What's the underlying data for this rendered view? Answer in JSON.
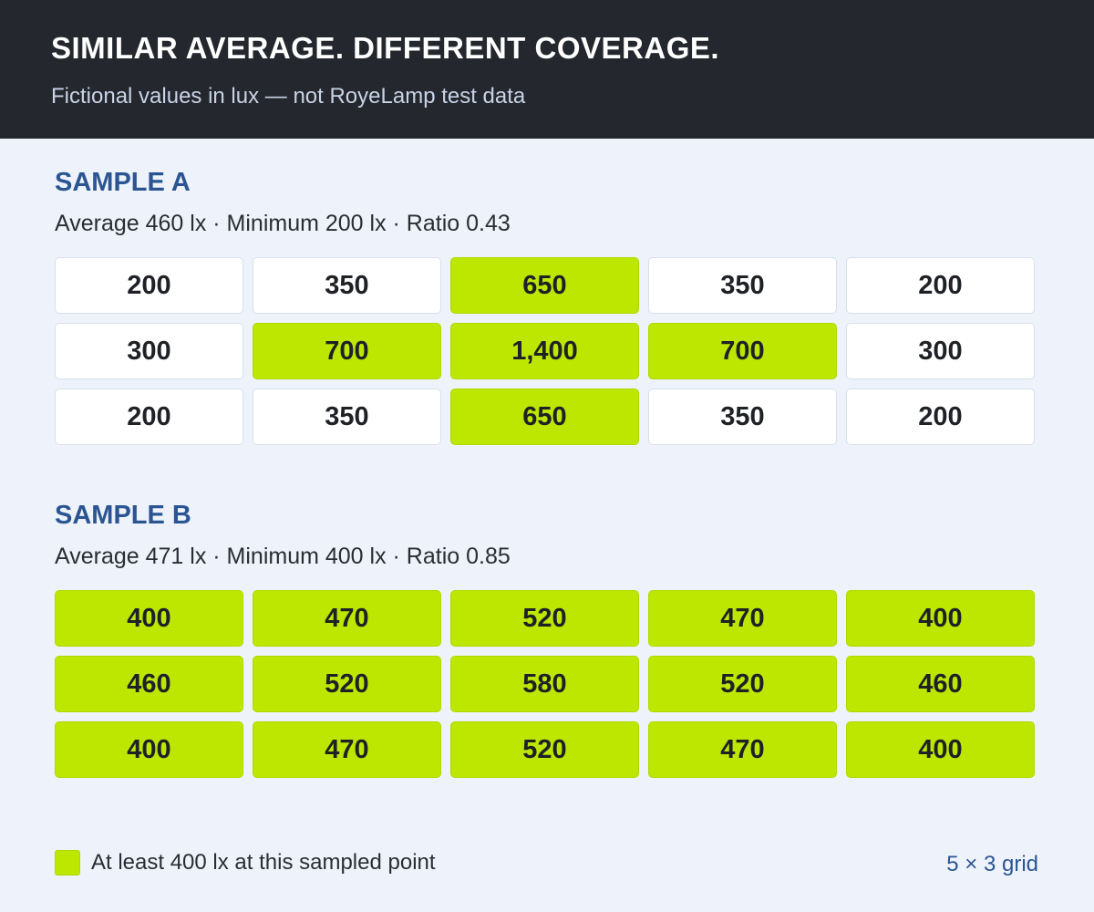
{
  "header": {
    "title": "SIMILAR AVERAGE. DIFFERENT COVERAGE.",
    "subtitle": "Fictional values in lux — not RoyeLamp test data"
  },
  "colors": {
    "highlight": "#bde600",
    "title_accent": "#2b5592",
    "header_background": "#24272d"
  },
  "samples": [
    {
      "title": "SAMPLE A",
      "stats": "Average 460 lx · Minimum 200 lx · Ratio 0.43",
      "grid": [
        [
          "200",
          "350",
          "650",
          "350",
          "200"
        ],
        [
          "300",
          "700",
          "1,400",
          "700",
          "300"
        ],
        [
          "200",
          "350",
          "650",
          "350",
          "200"
        ]
      ]
    },
    {
      "title": "SAMPLE B",
      "stats": "Average 471 lx · Minimum 400 lx · Ratio 0.85",
      "grid": [
        [
          "400",
          "470",
          "520",
          "470",
          "400"
        ],
        [
          "460",
          "520",
          "580",
          "520",
          "460"
        ],
        [
          "400",
          "470",
          "520",
          "470",
          "400"
        ]
      ]
    }
  ],
  "legend": {
    "label": "At least 400 lx at this sampled point",
    "threshold": 400
  },
  "grid_note": "5 × 3 grid"
}
